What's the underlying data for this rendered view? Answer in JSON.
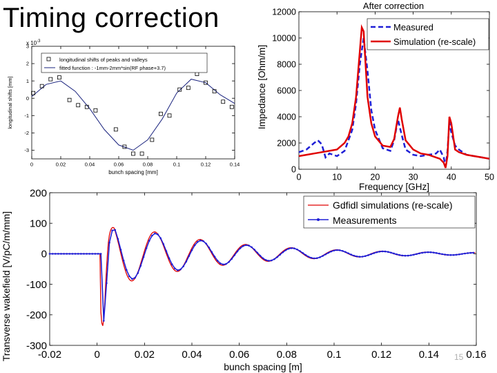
{
  "title": "Timing correction",
  "page_number": "15",
  "colors": {
    "blue": "#1f1fd6",
    "red": "#e00000",
    "navy": "#1a237e",
    "black": "#000000"
  },
  "chart_data": [
    {
      "id": "shifts",
      "type": "scatter",
      "xlabel": "bunch spacing [mm]",
      "ylabel": "longitudinal shifts [mm]",
      "exponent_label": "x 10",
      "exponent_power": "-3",
      "xlim": [
        0,
        0.14
      ],
      "ylim": [
        -3.5,
        3
      ],
      "xticks": [
        0,
        0.02,
        0.04,
        0.06,
        0.08,
        0.1,
        0.12,
        0.14
      ],
      "xtick_labels": [
        "0",
        "0.02",
        "0.04",
        "0.06",
        "0.08",
        "0.1",
        "0.12",
        "0.14"
      ],
      "yticks": [
        -3,
        -2,
        -1,
        0,
        1,
        2,
        3
      ],
      "ytick_labels": [
        "-3",
        "-2",
        "-1",
        "0",
        "1",
        "2",
        "3"
      ],
      "legend": [
        "longitudinal shifts of peaks and valleys",
        "fitted function : -1mm-2mm*sin(RF phase+3.7)"
      ],
      "series": [
        {
          "name": "longitudinal shifts of peaks and valleys",
          "style": "marker",
          "x": [
            0.001,
            0.007,
            0.013,
            0.019,
            0.026,
            0.032,
            0.038,
            0.044,
            0.058,
            0.064,
            0.07,
            0.076,
            0.083,
            0.089,
            0.095,
            0.102,
            0.108,
            0.114,
            0.12,
            0.126,
            0.132,
            0.138
          ],
          "y": [
            0.3,
            0.7,
            1.1,
            1.2,
            -0.1,
            -0.4,
            -0.5,
            -0.7,
            -1.8,
            -2.8,
            -3.2,
            -3.2,
            -2.4,
            -0.9,
            -1.0,
            0.5,
            0.6,
            1.4,
            0.9,
            0.4,
            -0.2,
            -0.5
          ]
        },
        {
          "name": "fitted function : -1mm-2mm*sin(RF phase+3.7)",
          "style": "line",
          "x": [
            0,
            0.01,
            0.02,
            0.03,
            0.04,
            0.05,
            0.06,
            0.07,
            0.08,
            0.09,
            0.1,
            0.11,
            0.12,
            0.13,
            0.14
          ],
          "y": [
            0.1,
            0.8,
            1.0,
            0.4,
            -0.6,
            -1.8,
            -2.7,
            -3.0,
            -2.4,
            -1.2,
            0.3,
            1.1,
            0.9,
            0.2,
            -0.3
          ]
        }
      ]
    },
    {
      "id": "impedance",
      "type": "line",
      "title": "After correction",
      "xlabel": "Frequency [GHz]",
      "ylabel": "Impedance [Ohm/m]",
      "xlim": [
        0,
        50
      ],
      "ylim": [
        0,
        12000
      ],
      "xticks": [
        0,
        10,
        20,
        30,
        40,
        50
      ],
      "xtick_labels": [
        "0",
        "10",
        "20",
        "30",
        "40",
        "50"
      ],
      "yticks": [
        0,
        2000,
        4000,
        6000,
        8000,
        10000,
        12000
      ],
      "ytick_labels": [
        "0",
        "2000",
        "4000",
        "6000",
        "8000",
        "10000",
        "12000"
      ],
      "legend": [
        "Measured",
        "Simulation (re-scale)"
      ],
      "series": [
        {
          "name": "Measured",
          "style": "dashed",
          "x": [
            0,
            2,
            4,
            5,
            6,
            7,
            8,
            10,
            12,
            14,
            15,
            16,
            17,
            18,
            19,
            20,
            22,
            24,
            25,
            26,
            27,
            28,
            30,
            32,
            34,
            36,
            37,
            38,
            38.5,
            39,
            39.5,
            40,
            41,
            42,
            44,
            46,
            48,
            50
          ],
          "y": [
            1300,
            1500,
            2000,
            2200,
            1900,
            900,
            1200,
            1000,
            1400,
            3000,
            5000,
            8000,
            10000,
            7500,
            4500,
            3000,
            1600,
            1400,
            2200,
            3800,
            2600,
            1500,
            1100,
            1000,
            1100,
            1200,
            1500,
            900,
            200,
            1400,
            3600,
            2800,
            1800,
            1500,
            1100,
            1000,
            900,
            800
          ]
        },
        {
          "name": "Simulation (re-scale)",
          "style": "solid",
          "x": [
            0,
            2,
            4,
            6,
            8,
            10,
            12,
            13,
            14,
            15,
            16,
            16.5,
            17,
            17.5,
            18,
            19,
            20,
            22,
            24,
            25,
            26,
            26.5,
            27,
            28,
            30,
            32,
            34,
            36,
            37,
            38,
            38.5,
            39,
            39.5,
            40,
            41,
            42,
            44,
            46,
            48,
            50
          ],
          "y": [
            1000,
            1100,
            1200,
            1300,
            1400,
            1500,
            2000,
            2500,
            3500,
            5500,
            9000,
            10800,
            10500,
            8000,
            5500,
            3500,
            2500,
            1800,
            1700,
            2300,
            4000,
            4700,
            3800,
            2200,
            1500,
            1200,
            1100,
            900,
            800,
            500,
            100,
            1000,
            4000,
            3500,
            1500,
            1300,
            1100,
            1000,
            900,
            800
          ]
        }
      ]
    },
    {
      "id": "wakefield",
      "type": "line",
      "xlabel": "bunch spacing [m]",
      "ylabel": "Transverse wakefield [V/pC/m/mm]",
      "xlim": [
        -0.02,
        0.16
      ],
      "ylim": [
        -300,
        200
      ],
      "xticks": [
        -0.02,
        0,
        0.02,
        0.04,
        0.06,
        0.08,
        0.1,
        0.12,
        0.14,
        0.16
      ],
      "xtick_labels": [
        "-0.02",
        "0",
        "0.02",
        "0.04",
        "0.06",
        "0.08",
        "0.1",
        "0.12",
        "0.14",
        "0.16"
      ],
      "yticks": [
        -300,
        -200,
        -100,
        0,
        100,
        200
      ],
      "ytick_labels": [
        "-300",
        "-200",
        "-100",
        "0",
        "100",
        "200"
      ],
      "legend": [
        "Gdfidl simulations (re-scale)",
        "Measurements"
      ],
      "series": [
        {
          "name": "Gdfidl simulations (re-scale)",
          "style": "solid"
        },
        {
          "name": "Measurements",
          "style": "marker-line"
        }
      ]
    }
  ]
}
